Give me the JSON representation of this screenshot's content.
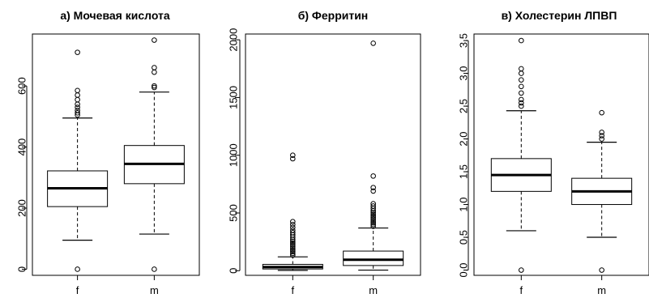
{
  "chart_data": [
    {
      "type": "box",
      "title": "а) Мочевая кислота",
      "categories": [
        "f",
        "m"
      ],
      "yticks": [
        0,
        200,
        400,
        600
      ],
      "ylim": [
        -20,
        770
      ],
      "grid": false,
      "series": [
        {
          "q1": 205,
          "median": 265,
          "q3": 322,
          "whisker_low": 95,
          "whisker_high": 495,
          "outliers": [
            0,
            505,
            512,
            520,
            530,
            540,
            555,
            570,
            585,
            710
          ]
        },
        {
          "q1": 280,
          "median": 345,
          "q3": 405,
          "whisker_low": 115,
          "whisker_high": 580,
          "outliers": [
            0,
            595,
            600,
            645,
            660,
            750
          ]
        }
      ]
    },
    {
      "type": "box",
      "title": "б) Ферритин",
      "categories": [
        "f",
        "m"
      ],
      "yticks": [
        0,
        500,
        1000,
        1500,
        2000
      ],
      "ylim": [
        -40,
        2050
      ],
      "grid": false,
      "series": [
        {
          "q1": 15,
          "median": 32,
          "q3": 55,
          "whisker_low": 3,
          "whisker_high": 120,
          "outliers": [
            135,
            150,
            165,
            180,
            195,
            210,
            225,
            240,
            255,
            270,
            290,
            310,
            330,
            350,
            375,
            400,
            425,
            970,
            1000
          ]
        },
        {
          "q1": 45,
          "median": 95,
          "q3": 170,
          "whisker_low": 5,
          "whisker_high": 370,
          "outliers": [
            385,
            400,
            415,
            430,
            445,
            460,
            475,
            490,
            505,
            520,
            540,
            560,
            580,
            690,
            720,
            820,
            1970
          ]
        }
      ]
    },
    {
      "type": "box",
      "title": "в) Холестерин ЛПВП",
      "categories": [
        "f",
        "m"
      ],
      "yticks": [
        "0.0",
        "0.5",
        "1.0",
        "1.5",
        "2.0",
        "2.5",
        "3.0",
        "3.5"
      ],
      "ylim": [
        -0.08,
        3.6
      ],
      "grid": false,
      "series": [
        {
          "q1": 1.2,
          "median": 1.45,
          "q3": 1.7,
          "whisker_low": 0.6,
          "whisker_high": 2.43,
          "outliers": [
            0,
            2.5,
            2.55,
            2.6,
            2.7,
            2.8,
            2.9,
            3.0,
            3.07,
            3.5
          ]
        },
        {
          "q1": 1.0,
          "median": 1.2,
          "q3": 1.4,
          "whisker_low": 0.5,
          "whisker_high": 1.95,
          "outliers": [
            0,
            2.0,
            2.05,
            2.1,
            2.4
          ]
        }
      ]
    }
  ]
}
